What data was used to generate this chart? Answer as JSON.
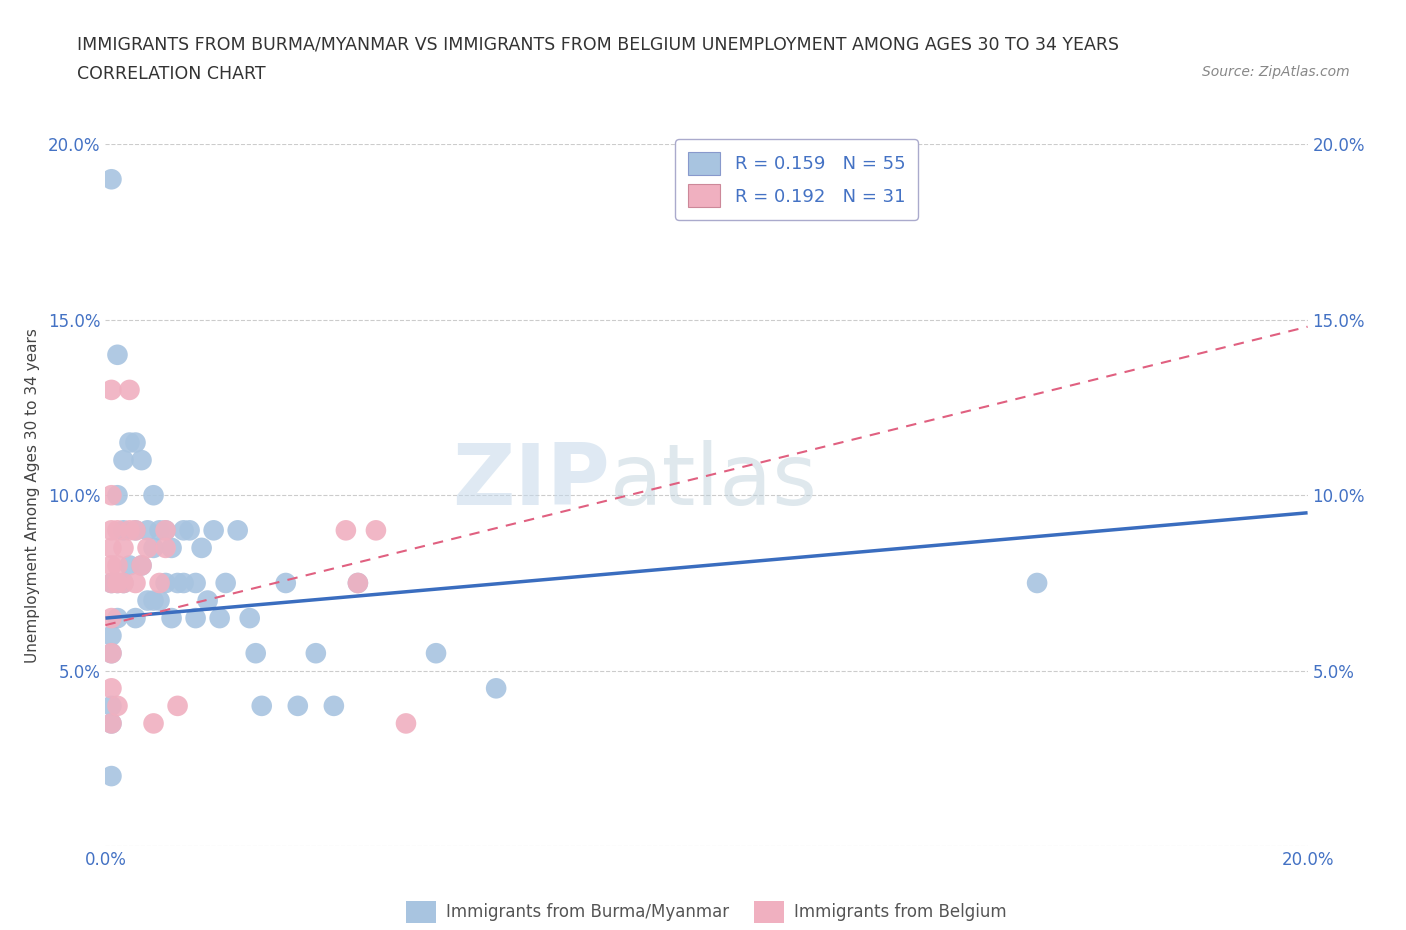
{
  "title_line1": "IMMIGRANTS FROM BURMA/MYANMAR VS IMMIGRANTS FROM BELGIUM UNEMPLOYMENT AMONG AGES 30 TO 34 YEARS",
  "title_line2": "CORRELATION CHART",
  "source_text": "Source: ZipAtlas.com",
  "watermark": "ZIPatlas",
  "ylabel": "Unemployment Among Ages 30 to 34 years",
  "xlim": [
    0.0,
    0.2
  ],
  "ylim": [
    0.0,
    0.2
  ],
  "grid_color": "#cccccc",
  "grid_style": "--",
  "background_color": "#ffffff",
  "blue_color": "#a8c4e0",
  "pink_color": "#f0b0c0",
  "blue_line_color": "#3a6dbf",
  "pink_line_color": "#e06080",
  "blue_R": 0.159,
  "blue_N": 55,
  "pink_R": 0.192,
  "pink_N": 31,
  "legend_label_blue": "Immigrants from Burma/Myanmar",
  "legend_label_pink": "Immigrants from Belgium",
  "blue_line_x0": 0.0,
  "blue_line_y0": 0.065,
  "blue_line_x1": 0.2,
  "blue_line_y1": 0.095,
  "pink_line_x0": 0.0,
  "pink_line_y0": 0.063,
  "pink_line_x1": 0.2,
  "pink_line_y1": 0.148,
  "blue_scatter_x": [
    0.001,
    0.001,
    0.001,
    0.001,
    0.001,
    0.001,
    0.001,
    0.002,
    0.002,
    0.002,
    0.002,
    0.003,
    0.003,
    0.003,
    0.004,
    0.004,
    0.005,
    0.005,
    0.005,
    0.006,
    0.006,
    0.007,
    0.007,
    0.008,
    0.008,
    0.008,
    0.009,
    0.009,
    0.01,
    0.01,
    0.011,
    0.011,
    0.012,
    0.013,
    0.013,
    0.014,
    0.015,
    0.015,
    0.016,
    0.017,
    0.018,
    0.019,
    0.02,
    0.022,
    0.024,
    0.025,
    0.026,
    0.03,
    0.032,
    0.035,
    0.038,
    0.042,
    0.055,
    0.065,
    0.155
  ],
  "blue_scatter_y": [
    0.19,
    0.075,
    0.06,
    0.055,
    0.04,
    0.035,
    0.02,
    0.14,
    0.1,
    0.075,
    0.065,
    0.11,
    0.09,
    0.075,
    0.115,
    0.08,
    0.115,
    0.09,
    0.065,
    0.11,
    0.08,
    0.09,
    0.07,
    0.1,
    0.085,
    0.07,
    0.09,
    0.07,
    0.09,
    0.075,
    0.085,
    0.065,
    0.075,
    0.09,
    0.075,
    0.09,
    0.075,
    0.065,
    0.085,
    0.07,
    0.09,
    0.065,
    0.075,
    0.09,
    0.065,
    0.055,
    0.04,
    0.075,
    0.04,
    0.055,
    0.04,
    0.075,
    0.055,
    0.045,
    0.075
  ],
  "pink_scatter_x": [
    0.001,
    0.001,
    0.001,
    0.001,
    0.001,
    0.001,
    0.001,
    0.001,
    0.001,
    0.001,
    0.002,
    0.002,
    0.002,
    0.002,
    0.003,
    0.003,
    0.004,
    0.004,
    0.005,
    0.005,
    0.006,
    0.007,
    0.008,
    0.009,
    0.01,
    0.01,
    0.012,
    0.04,
    0.042,
    0.045,
    0.05
  ],
  "pink_scatter_y": [
    0.13,
    0.1,
    0.09,
    0.085,
    0.08,
    0.075,
    0.065,
    0.055,
    0.045,
    0.035,
    0.09,
    0.08,
    0.075,
    0.04,
    0.085,
    0.075,
    0.13,
    0.09,
    0.09,
    0.075,
    0.08,
    0.085,
    0.035,
    0.075,
    0.09,
    0.085,
    0.04,
    0.09,
    0.075,
    0.09,
    0.035
  ]
}
